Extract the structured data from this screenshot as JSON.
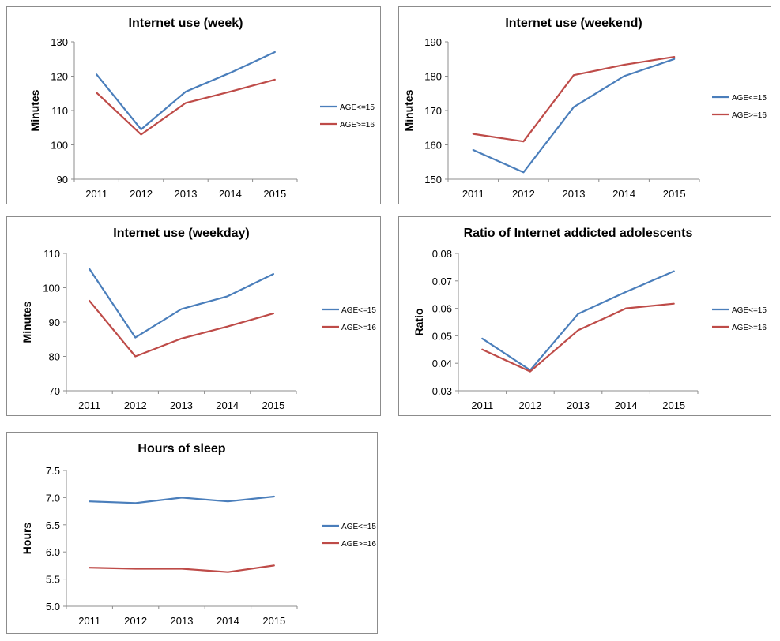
{
  "colors": {
    "age_le_15": "#4a7ebb",
    "age_ge_16": "#be4b48"
  },
  "chart_data": [
    {
      "type": "line",
      "title": "Internet use (week)",
      "xlabel": "",
      "ylabel": "Minutes",
      "x": [
        "2011",
        "2012",
        "2013",
        "2014",
        "2015"
      ],
      "ylim": [
        90,
        130
      ],
      "yticks": [
        "90",
        "100",
        "110",
        "120",
        "130"
      ],
      "series": [
        {
          "name": "AGE<=15",
          "color": "#4a7ebb",
          "values": [
            120.5,
            104.5,
            115.5,
            121,
            127
          ]
        },
        {
          "name": "AGE>=16",
          "color": "#be4b48",
          "values": [
            115.2,
            103,
            112.2,
            115.5,
            119
          ]
        }
      ],
      "legend": "right"
    },
    {
      "type": "line",
      "title": "Internet use (weekend)",
      "xlabel": "",
      "ylabel": "Minutes",
      "x": [
        "2011",
        "2012",
        "2013",
        "2014",
        "2015"
      ],
      "ylim": [
        150,
        190
      ],
      "yticks": [
        "150",
        "160",
        "170",
        "180",
        "190"
      ],
      "series": [
        {
          "name": "AGE<=15",
          "color": "#4a7ebb",
          "values": [
            158.5,
            152,
            171,
            180,
            185
          ]
        },
        {
          "name": "AGE>=16",
          "color": "#be4b48",
          "values": [
            163.2,
            161,
            180.3,
            183.3,
            185.6
          ]
        }
      ],
      "legend": "right"
    },
    {
      "type": "line",
      "title": "Internet use (weekday)",
      "xlabel": "",
      "ylabel": "Minutes",
      "x": [
        "2011",
        "2012",
        "2013",
        "2014",
        "2015"
      ],
      "ylim": [
        70,
        110
      ],
      "yticks": [
        "70",
        "80",
        "90",
        "100",
        "110"
      ],
      "series": [
        {
          "name": "AGE<=15",
          "color": "#4a7ebb",
          "values": [
            105.5,
            85.5,
            93.8,
            97.5,
            104
          ]
        },
        {
          "name": "AGE>=16",
          "color": "#be4b48",
          "values": [
            96.2,
            80,
            85.2,
            88.7,
            92.5
          ]
        }
      ],
      "legend": "right"
    },
    {
      "type": "line",
      "title": "Ratio of Internet addicted adolescents",
      "xlabel": "",
      "ylabel": "Ratio",
      "x": [
        "2011",
        "2012",
        "2013",
        "2014",
        "2015"
      ],
      "ylim": [
        0.03,
        0.08
      ],
      "yticks": [
        "0.03",
        "0.04",
        "0.05",
        "0.06",
        "0.07",
        "0.08"
      ],
      "series": [
        {
          "name": "AGE<=15",
          "color": "#4a7ebb",
          "values": [
            0.049,
            0.0375,
            0.058,
            0.066,
            0.0735
          ]
        },
        {
          "name": "AGE>=16",
          "color": "#be4b48",
          "values": [
            0.045,
            0.037,
            0.052,
            0.06,
            0.0617
          ]
        }
      ],
      "legend": "right"
    },
    {
      "type": "line",
      "title": "Hours of sleep",
      "xlabel": "",
      "ylabel": "Hours",
      "x": [
        "2011",
        "2012",
        "2013",
        "2014",
        "2015"
      ],
      "ylim": [
        5.0,
        7.5
      ],
      "yticks": [
        "5.0",
        "5.5",
        "6.0",
        "6.5",
        "7.0",
        "7.5"
      ],
      "series": [
        {
          "name": "AGE<=15",
          "color": "#4a7ebb",
          "values": [
            6.93,
            6.9,
            7.0,
            6.93,
            7.02
          ]
        },
        {
          "name": "AGE>=16",
          "color": "#be4b48",
          "values": [
            5.71,
            5.69,
            5.69,
            5.63,
            5.75
          ]
        }
      ],
      "legend": "right"
    }
  ]
}
